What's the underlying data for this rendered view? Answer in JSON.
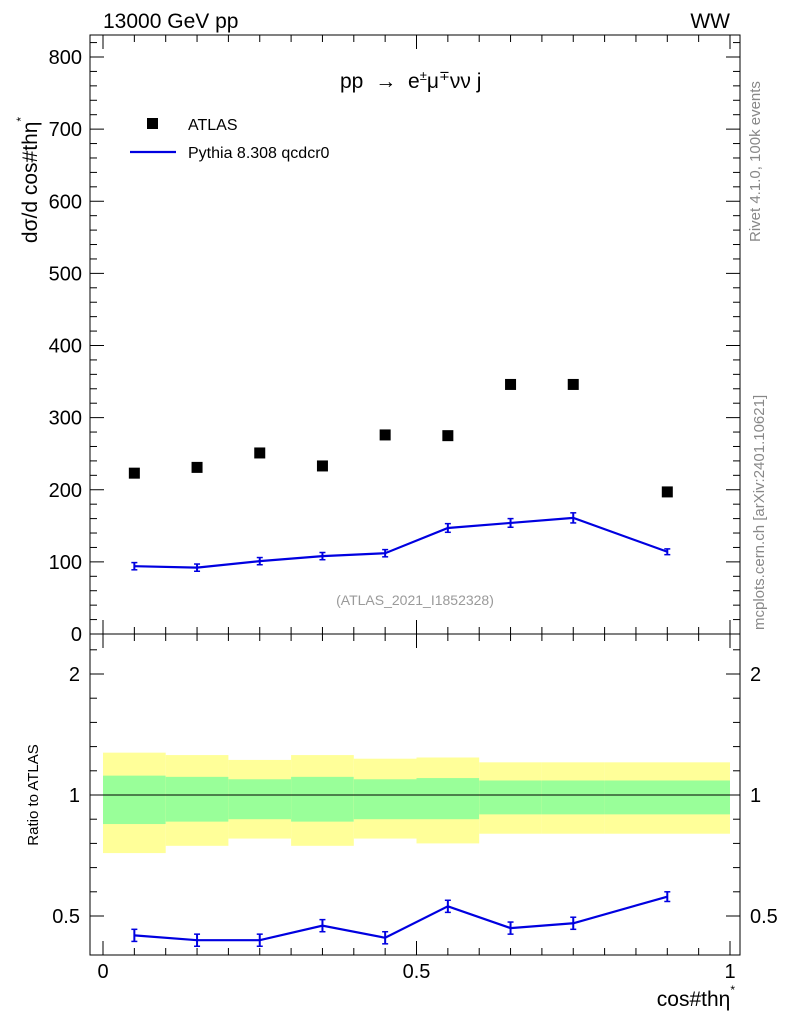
{
  "header": {
    "energy": "13000 GeV pp",
    "process_tag": "WW"
  },
  "side": {
    "rivet": "Rivet 4.1.0,  100k events",
    "mcplots": "mcplots.cern.ch [arXiv:2401.10621]"
  },
  "analysis_id": "(ATLAS_2021_I1852328)",
  "colors": {
    "data": "#000000",
    "mc": "#0000e0",
    "band_green": "#99ff99",
    "band_yellow": "#ffff99"
  },
  "chart_data": [
    {
      "type": "scatter",
      "title": "pp → e±μ∓νν j",
      "title_parts": {
        "lhs": "pp",
        "arrow": "→",
        "e": "e",
        "e_sup": "±",
        "mu": "μ",
        "mu_sup": "∓",
        "rest": "νν j"
      },
      "xlabel": "cos#thη",
      "xlabel_sup": "*",
      "ylabel": "dσ/d cos#thη",
      "ylabel_sup": "*",
      "xlim": [
        0,
        1
      ],
      "ylim": [
        0,
        830
      ],
      "yticks": [
        0,
        100,
        200,
        300,
        400,
        500,
        600,
        700,
        800
      ],
      "ytick_labels": [
        "0",
        "100",
        "200",
        "300",
        "400",
        "500",
        "600",
        "700",
        "800"
      ],
      "legend": [
        "ATLAS",
        "Pythia 8.308 qcdcr0"
      ],
      "legend_position": "top-left",
      "series": [
        {
          "name": "ATLAS",
          "marker": "square",
          "x": [
            0.05,
            0.15,
            0.25,
            0.35,
            0.45,
            0.55,
            0.65,
            0.75,
            0.9
          ],
          "values": [
            223,
            231,
            251,
            233,
            276,
            275,
            346,
            346,
            197
          ]
        },
        {
          "name": "Pythia 8.308 qcdcr0",
          "marker": "line",
          "x": [
            0.05,
            0.15,
            0.25,
            0.35,
            0.45,
            0.55,
            0.65,
            0.75,
            0.9
          ],
          "values": [
            94,
            92,
            101,
            108,
            112,
            147,
            154,
            161,
            114
          ],
          "errors": [
            5,
            5,
            5,
            5,
            5,
            6,
            6,
            7,
            4
          ]
        }
      ]
    },
    {
      "type": "line",
      "ylabel": "Ratio to ATLAS",
      "xlim": [
        0,
        1
      ],
      "ylim": [
        0.35,
        2.3
      ],
      "ytick_labels": [
        "0.5",
        "1",
        "2"
      ],
      "yticks": [
        0.5,
        1,
        2
      ],
      "xtick_labels": [
        "0",
        "0.5",
        "1"
      ],
      "xticks": [
        0,
        0.5,
        1
      ],
      "bin_edges": [
        0,
        0.1,
        0.2,
        0.3,
        0.4,
        0.5,
        0.6,
        0.7,
        0.8,
        1.0
      ],
      "band_stat": [
        [
          0.88,
          1.16
        ],
        [
          0.89,
          1.15
        ],
        [
          0.9,
          1.13
        ],
        [
          0.89,
          1.15
        ],
        [
          0.9,
          1.13
        ],
        [
          0.9,
          1.14
        ],
        [
          0.92,
          1.12
        ],
        [
          0.92,
          1.12
        ],
        [
          0.92,
          1.12
        ]
      ],
      "band_total": [
        [
          0.76,
          1.35
        ],
        [
          0.79,
          1.33
        ],
        [
          0.82,
          1.29
        ],
        [
          0.79,
          1.33
        ],
        [
          0.82,
          1.3
        ],
        [
          0.8,
          1.31
        ],
        [
          0.84,
          1.27
        ],
        [
          0.84,
          1.27
        ],
        [
          0.84,
          1.27
        ]
      ],
      "series": [
        {
          "name": "Pythia 8.308 qcdcr0",
          "x": [
            0.05,
            0.15,
            0.25,
            0.35,
            0.45,
            0.55,
            0.65,
            0.75,
            0.9
          ],
          "values": [
            0.42,
            0.4,
            0.4,
            0.46,
            0.41,
            0.54,
            0.45,
            0.47,
            0.58
          ],
          "errors": [
            0.025,
            0.025,
            0.025,
            0.025,
            0.025,
            0.025,
            0.025,
            0.025,
            0.02
          ]
        }
      ]
    }
  ]
}
